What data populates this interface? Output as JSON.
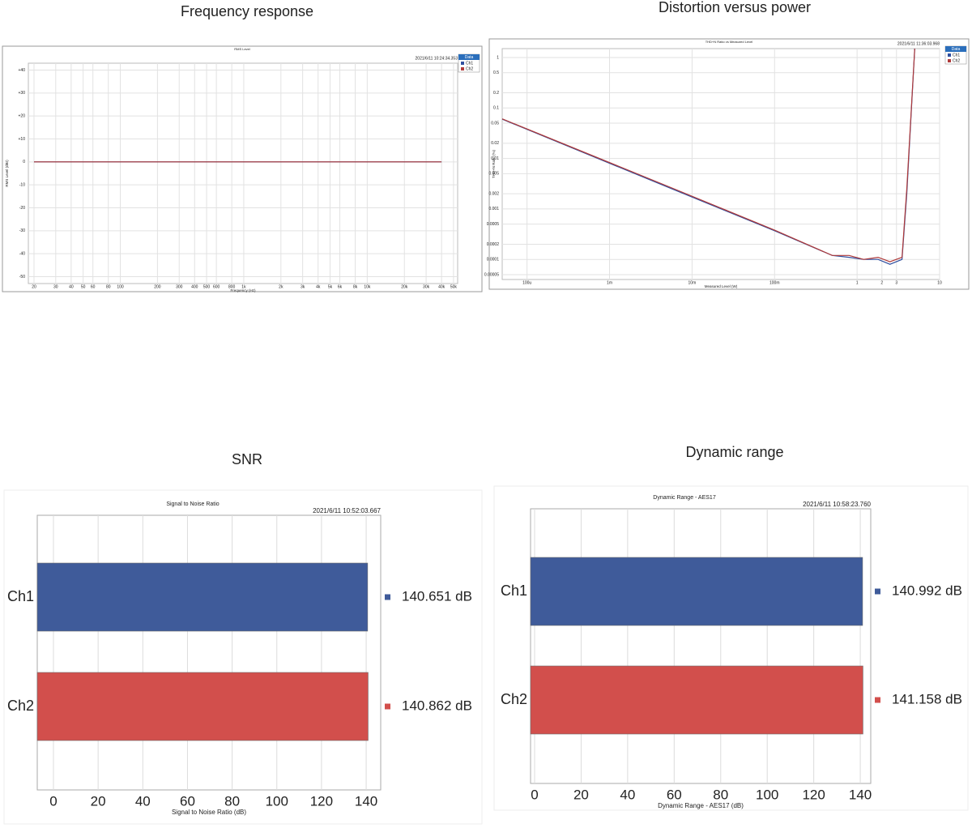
{
  "chart_data": [
    {
      "type": "line",
      "title": "Frequency response",
      "inner_title": "RMS Level",
      "timestamp": "2021/6/11 10:24:34.353",
      "x_label": "Frequency (Hz)",
      "y_label": "RMS Level (dBr)",
      "legend_title": "Data",
      "legend": "top-right",
      "grid": true,
      "xscale": "log",
      "xlim": [
        18,
        54000
      ],
      "ylim": [
        -53,
        43
      ],
      "xticks": [
        20,
        30,
        40,
        50,
        60,
        80,
        100,
        200,
        300,
        400,
        500,
        600,
        800,
        {
          "value": 1000,
          "label": "1k"
        },
        {
          "value": 2000,
          "label": "2k"
        },
        {
          "value": 3000,
          "label": "3k"
        },
        {
          "value": 4000,
          "label": "4k"
        },
        {
          "value": 5000,
          "label": "5k"
        },
        {
          "value": 6000,
          "label": "6k"
        },
        {
          "value": 8000,
          "label": "8k"
        },
        {
          "value": 10000,
          "label": "10k"
        },
        {
          "value": 20000,
          "label": "20k"
        },
        {
          "value": 30000,
          "label": "30k"
        },
        {
          "value": 40000,
          "label": "40k"
        },
        {
          "value": 50000,
          "label": "50k"
        }
      ],
      "yticks": [
        {
          "value": 40,
          "label": "+40"
        },
        {
          "value": 30,
          "label": "+30"
        },
        {
          "value": 20,
          "label": "+20"
        },
        {
          "value": 10,
          "label": "+10"
        },
        0,
        -10,
        -20,
        -30,
        -40,
        -50
      ],
      "x": [
        20,
        40000
      ],
      "series": [
        {
          "name": "Ch1",
          "color": "#2f4f9f",
          "values": [
            0,
            0
          ]
        },
        {
          "name": "Ch2",
          "color": "#b03a3a",
          "values": [
            0,
            0
          ]
        }
      ]
    },
    {
      "type": "line",
      "title": "Distortion versus power",
      "inner_title": "THD+N Ratio vs Measured Level",
      "timestamp": "2021/6/11 11:36:03.968",
      "x_label": "Measured Level (W)",
      "y_label": "THD+N Ratio (%)",
      "legend_title": "Data",
      "legend": "top-right",
      "grid": true,
      "xscale": "log",
      "yscale": "log",
      "xlim": [
        5e-05,
        10
      ],
      "ylim": [
        4e-05,
        1.5
      ],
      "xticks": [
        {
          "value": 0.0001,
          "label": "100u"
        },
        {
          "value": 0.001,
          "label": "1m"
        },
        {
          "value": 0.01,
          "label": "10m"
        },
        {
          "value": 0.1,
          "label": "100m"
        },
        1,
        2,
        3,
        10
      ],
      "yticks": [
        1,
        0.5,
        0.2,
        0.1,
        0.05,
        0.02,
        0.01,
        0.005,
        0.002,
        0.001,
        0.0005,
        0.0002,
        0.0001,
        5e-05
      ],
      "x": [
        5e-05,
        0.0057,
        0.1,
        0.5,
        0.8,
        1.2,
        1.8,
        2.5,
        3.5,
        4,
        5
      ],
      "series": [
        {
          "name": "Ch1",
          "color": "#2f4f9f",
          "values": [
            0.06,
            0.0025,
            0.00037,
            0.00012,
            0.00011,
            0.0001,
            0.0001,
            8e-05,
            0.0001,
            0.002,
            1.5
          ]
        },
        {
          "name": "Ch2",
          "color": "#b03a3a",
          "values": [
            0.061,
            0.0026,
            0.00038,
            0.00012,
            0.00012,
            0.0001,
            0.00011,
            9e-05,
            0.00011,
            0.0025,
            1.5
          ]
        }
      ]
    },
    {
      "type": "hbar",
      "title": "SNR",
      "inner_title": "Signal to Noise Ratio",
      "timestamp": "2021/6/11 10:52:03.667",
      "x_label": "Signal to Noise Ratio (dB)",
      "grid": true,
      "xlim": [
        -7.25,
        146.5
      ],
      "xticks": [
        0,
        20,
        40,
        60,
        80,
        100,
        120,
        140
      ],
      "categories": [
        "Ch1",
        "Ch2"
      ],
      "values": [
        140.651,
        140.862
      ],
      "value_labels": [
        "140.651 dB",
        "140.862 dB"
      ],
      "colors": [
        "#3f5b9a",
        "#d24f4c"
      ]
    },
    {
      "type": "hbar",
      "title": "Dynamic range",
      "inner_title": "Dynamic Range - AES17",
      "timestamp": "2021/6/11 10:58:23.760",
      "x_label": "Dynamic Range - AES17 (dB)",
      "grid": true,
      "xlim": [
        -1.74,
        144.5
      ],
      "xticks": [
        0,
        20,
        40,
        60,
        80,
        100,
        120,
        140
      ],
      "categories": [
        "Ch1",
        "Ch2"
      ],
      "values": [
        140.992,
        141.158
      ],
      "value_labels": [
        "140.992 dB",
        "141.158 dB"
      ],
      "colors": [
        "#3f5b9a",
        "#d24f4c"
      ]
    }
  ]
}
